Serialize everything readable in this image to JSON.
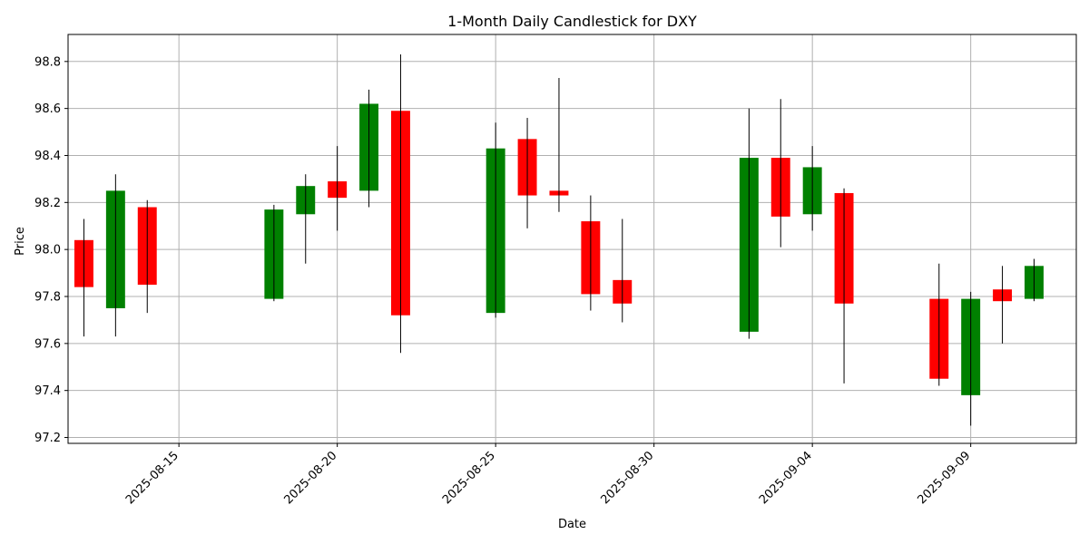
{
  "chart_data": {
    "type": "candlestick",
    "title": "1-Month Daily Candlestick for DXY",
    "xlabel": "Date",
    "ylabel": "Price",
    "ylim": [
      97.175,
      98.915
    ],
    "xlim": [
      "2025-08-11T12:00",
      "2025-09-12T08:00"
    ],
    "grid": true,
    "colors": {
      "up": "#008000",
      "down": "#ff0000",
      "wick": "#000000",
      "grid": "#b0b0b0"
    },
    "y_ticks": [
      "97.2",
      "97.4",
      "97.6",
      "97.8",
      "98.0",
      "98.2",
      "98.4",
      "98.6",
      "98.8"
    ],
    "x_ticks": [
      "2025-08-15",
      "2025-08-20",
      "2025-08-25",
      "2025-08-30",
      "2025-09-04",
      "2025-09-09"
    ],
    "candles": [
      {
        "date": "2025-08-12",
        "open": 98.04,
        "high": 98.13,
        "low": 97.63,
        "close": 97.84
      },
      {
        "date": "2025-08-13",
        "open": 97.75,
        "high": 98.32,
        "low": 97.63,
        "close": 98.25
      },
      {
        "date": "2025-08-14",
        "open": 98.18,
        "high": 98.21,
        "low": 97.73,
        "close": 97.85
      },
      {
        "date": "2025-08-18",
        "open": 97.79,
        "high": 98.19,
        "low": 97.78,
        "close": 98.17
      },
      {
        "date": "2025-08-19",
        "open": 98.15,
        "high": 98.32,
        "low": 97.94,
        "close": 98.27
      },
      {
        "date": "2025-08-20",
        "open": 98.29,
        "high": 98.44,
        "low": 98.08,
        "close": 98.22
      },
      {
        "date": "2025-08-21",
        "open": 98.25,
        "high": 98.68,
        "low": 98.18,
        "close": 98.62
      },
      {
        "date": "2025-08-22",
        "open": 98.59,
        "high": 98.83,
        "low": 97.56,
        "close": 97.72
      },
      {
        "date": "2025-08-25",
        "open": 97.73,
        "high": 98.54,
        "low": 97.71,
        "close": 98.43
      },
      {
        "date": "2025-08-26",
        "open": 98.47,
        "high": 98.56,
        "low": 98.09,
        "close": 98.23
      },
      {
        "date": "2025-08-27",
        "open": 98.25,
        "high": 98.73,
        "low": 98.16,
        "close": 98.23
      },
      {
        "date": "2025-08-28",
        "open": 98.12,
        "high": 98.23,
        "low": 97.74,
        "close": 97.81
      },
      {
        "date": "2025-08-29",
        "open": 97.87,
        "high": 98.13,
        "low": 97.69,
        "close": 97.77
      },
      {
        "date": "2025-09-02",
        "open": 97.65,
        "high": 98.6,
        "low": 97.62,
        "close": 98.39
      },
      {
        "date": "2025-09-03",
        "open": 98.39,
        "high": 98.64,
        "low": 98.01,
        "close": 98.14
      },
      {
        "date": "2025-09-04",
        "open": 98.15,
        "high": 98.44,
        "low": 98.08,
        "close": 98.35
      },
      {
        "date": "2025-09-05",
        "open": 98.24,
        "high": 98.26,
        "low": 97.43,
        "close": 97.77
      },
      {
        "date": "2025-09-08",
        "open": 97.79,
        "high": 97.94,
        "low": 97.42,
        "close": 97.45
      },
      {
        "date": "2025-09-09",
        "open": 97.38,
        "high": 97.82,
        "low": 97.25,
        "close": 97.79
      },
      {
        "date": "2025-09-10",
        "open": 97.83,
        "high": 97.93,
        "low": 97.6,
        "close": 97.78
      },
      {
        "date": "2025-09-11",
        "open": 97.79,
        "high": 97.96,
        "low": 97.78,
        "close": 97.93
      }
    ]
  }
}
